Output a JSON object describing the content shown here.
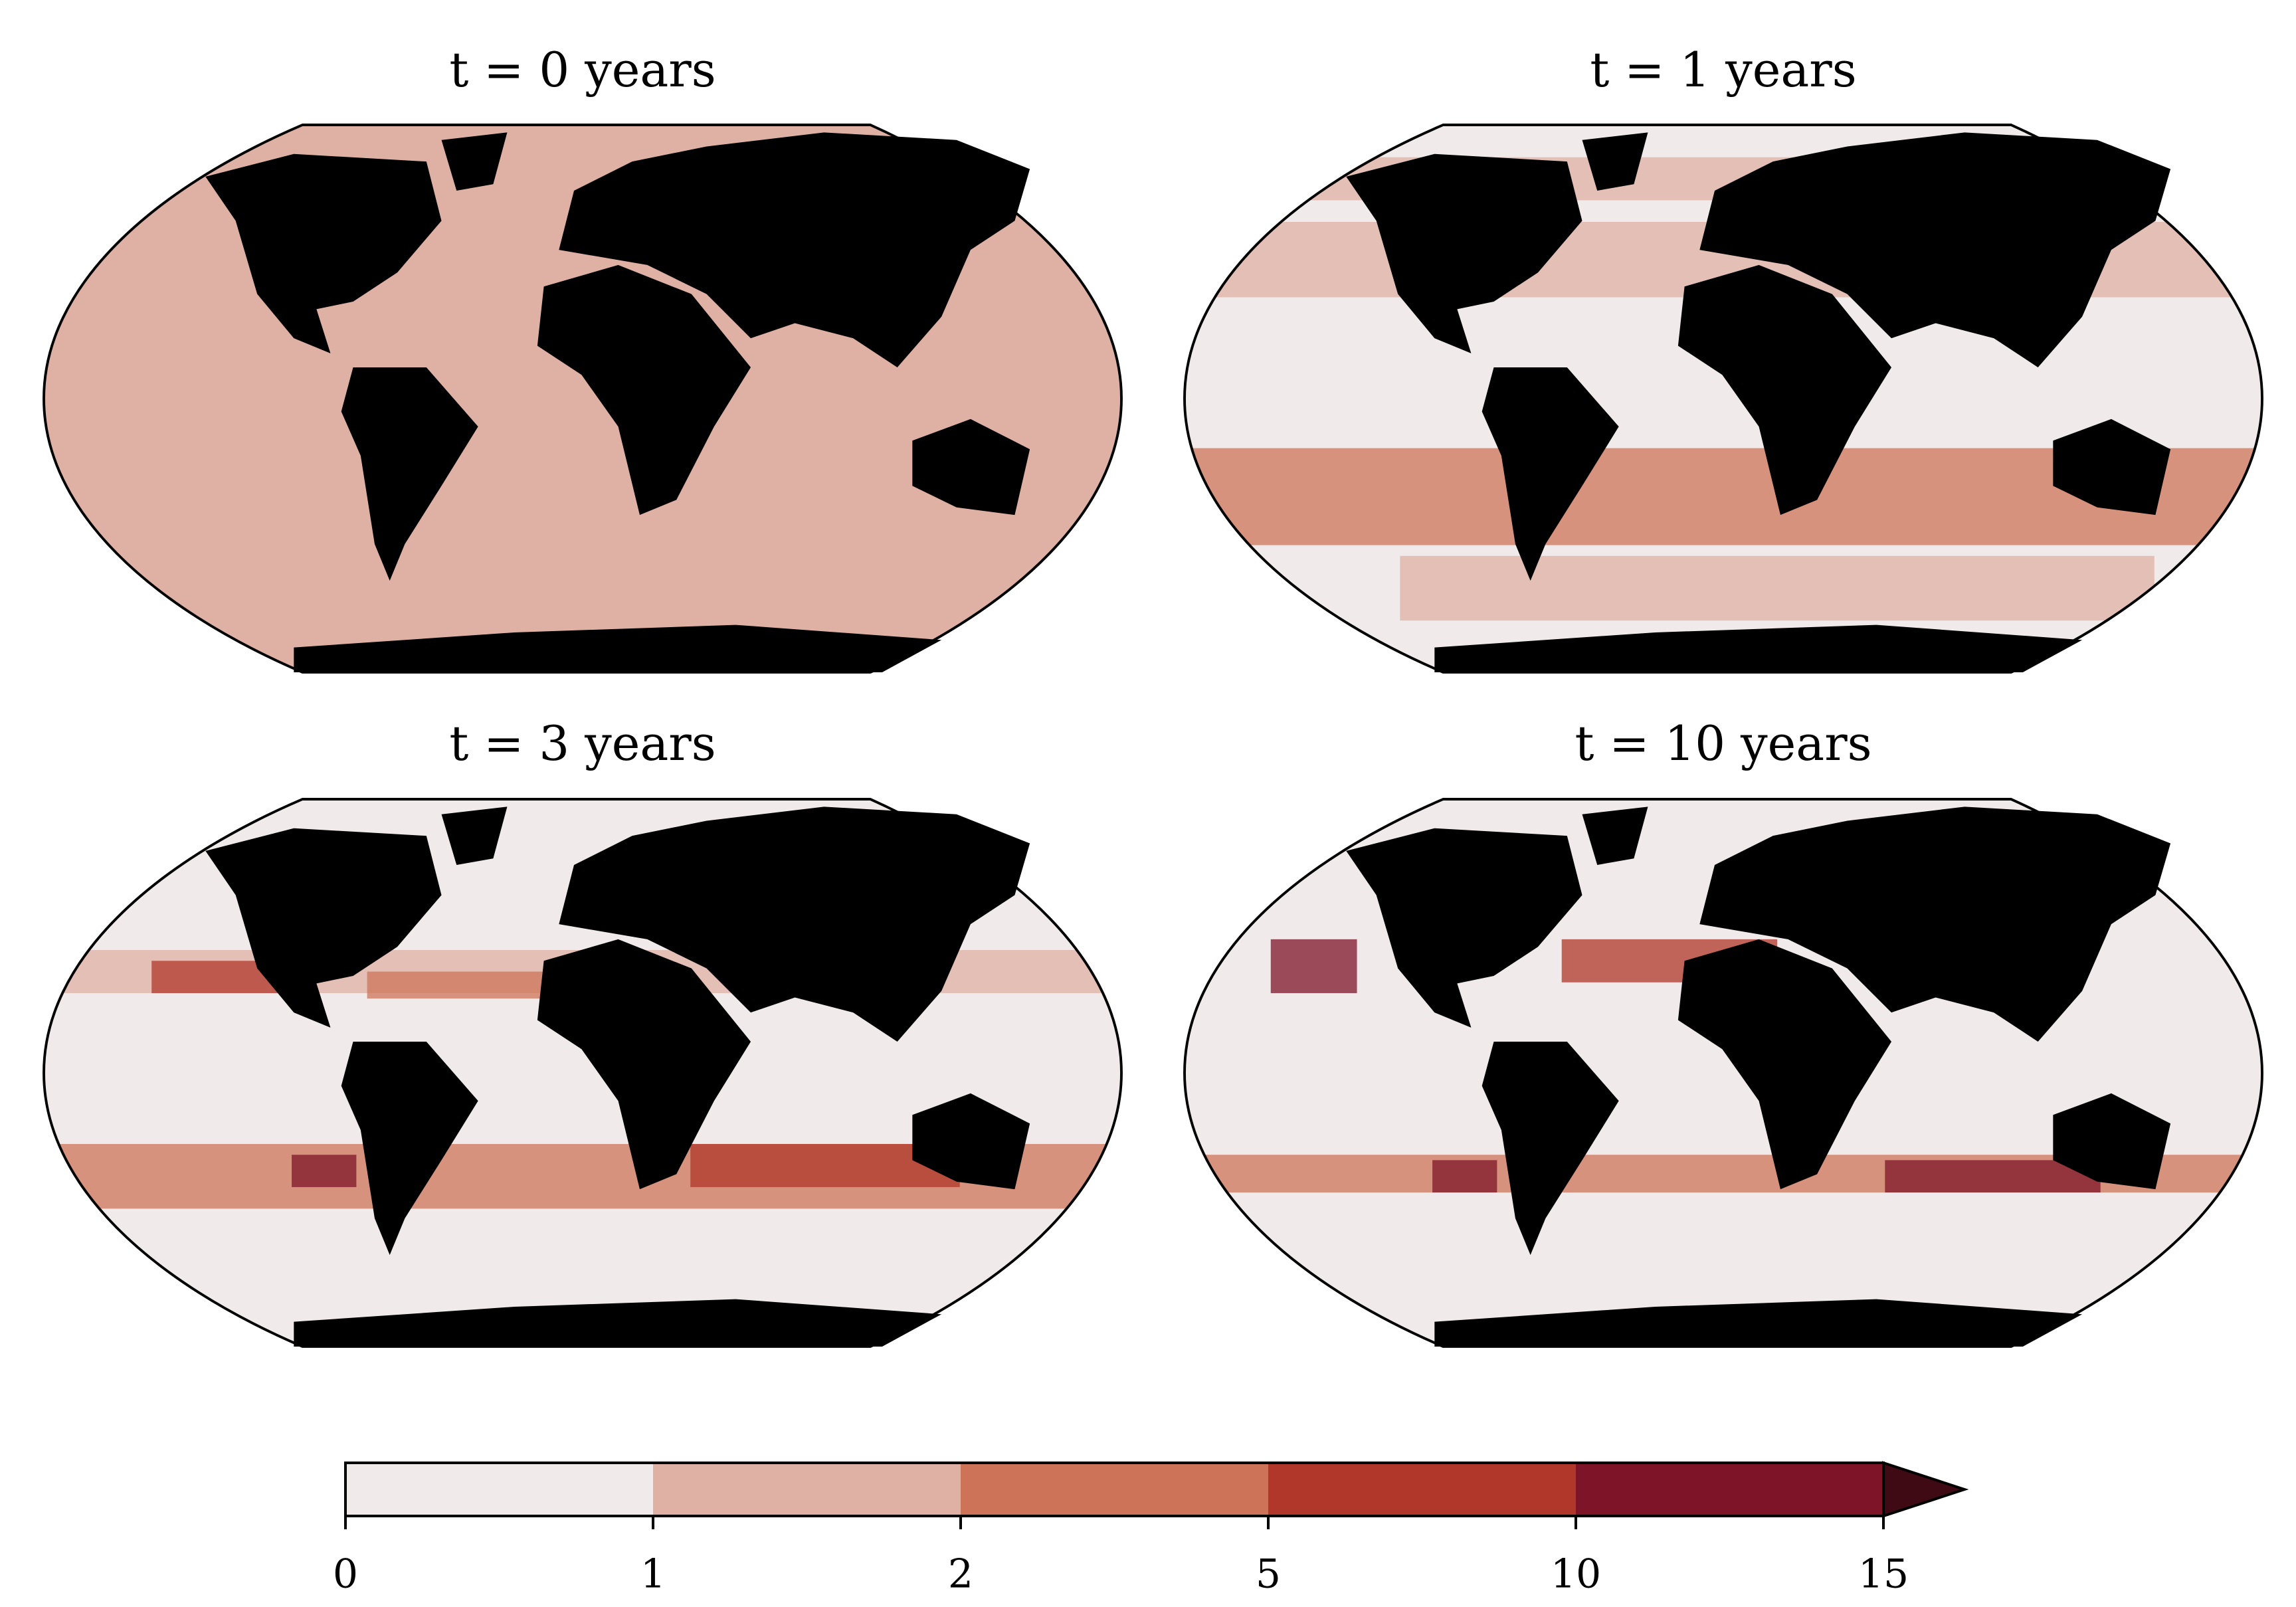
{
  "panels": [
    {
      "title": "t = 0 years"
    },
    {
      "title": "t = 1 years"
    },
    {
      "title": "t = 3 years"
    },
    {
      "title": "t = 10 years"
    }
  ],
  "colorbar": {
    "ticks": [
      0,
      1,
      2,
      5,
      10,
      15
    ],
    "colors": [
      "#f0ebea",
      "#dfb0a4",
      "#cd7458",
      "#b0372a",
      "#7d1428"
    ],
    "extend_color": "#3f0a14"
  }
}
